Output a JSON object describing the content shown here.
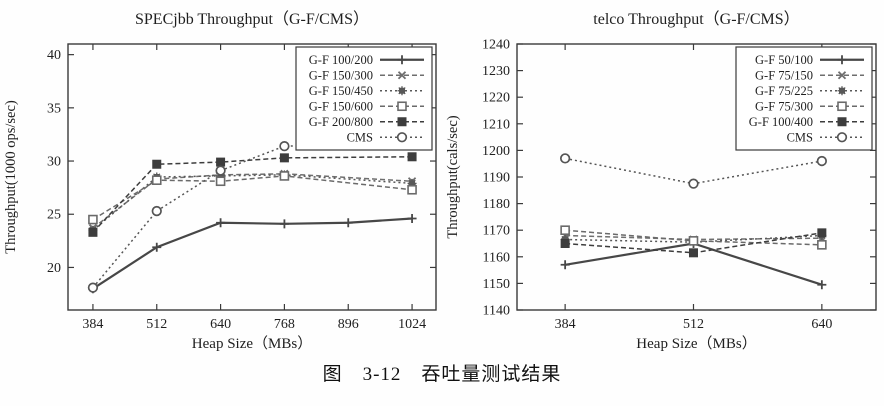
{
  "figure": {
    "caption": "图　3-12　吞吐量测试结果"
  },
  "colors": {
    "ink": "#3a3a3a",
    "background": "#fefefe"
  },
  "chart_data": [
    {
      "type": "line",
      "title": "SPECjbb Throughput（G-F/CMS）",
      "xlabel": "Heap Size（MBs）",
      "ylabel": "Throughput(1000 ops/sec)",
      "xlim": [
        334,
        1072
      ],
      "ylim": [
        16,
        41
      ],
      "xticks": [
        384,
        512,
        640,
        768,
        896,
        1024
      ],
      "yticks": [
        20,
        25,
        30,
        35,
        40
      ],
      "grid": false,
      "legend_position": "top-right",
      "series": [
        {
          "name": "G-F 100/200",
          "marker": "plus",
          "line": "solid",
          "color": "#474747",
          "x": [
            384,
            512,
            640,
            768,
            896,
            1024
          ],
          "y": [
            18.0,
            21.9,
            24.2,
            24.1,
            24.2,
            24.6
          ]
        },
        {
          "name": "G-F 150/300",
          "marker": "x",
          "line": "dashed",
          "color": "#6e6e6e",
          "x": [
            384,
            512,
            640,
            768,
            1024
          ],
          "y": [
            23.7,
            28.3,
            28.7,
            28.8,
            28.1
          ]
        },
        {
          "name": "G-F 150/450",
          "marker": "star-filled",
          "line": "dotted",
          "color": "#585858",
          "x": [
            384,
            512,
            640,
            768,
            1024
          ],
          "y": [
            23.5,
            28.5,
            28.6,
            28.7,
            27.9
          ]
        },
        {
          "name": "G-F 150/600",
          "marker": "square-open",
          "line": "dashed",
          "color": "#6a6a6a",
          "x": [
            384,
            512,
            640,
            768,
            1024
          ],
          "y": [
            24.5,
            28.2,
            28.1,
            28.6,
            27.3
          ]
        },
        {
          "name": "G-F 200/800",
          "marker": "square-filled",
          "line": "dashed",
          "color": "#3d3d3d",
          "x": [
            384,
            512,
            640,
            768,
            1024
          ],
          "y": [
            23.3,
            29.7,
            29.9,
            30.3,
            30.4
          ]
        },
        {
          "name": "CMS",
          "marker": "circle-open",
          "line": "dotted",
          "color": "#555555",
          "x": [
            384,
            512,
            640,
            768,
            1024
          ],
          "y": [
            18.1,
            25.3,
            29.1,
            31.4,
            31.6
          ]
        }
      ]
    },
    {
      "type": "line",
      "title": "telco Throughput（G-F/CMS）",
      "xlabel": "Heap Size（MBs）",
      "ylabel": "Throughput(cals/sec)",
      "xlim": [
        336,
        694
      ],
      "ylim": [
        1140,
        1240
      ],
      "xticks": [
        384,
        512,
        640
      ],
      "yticks": [
        1140,
        1150,
        1160,
        1170,
        1180,
        1190,
        1200,
        1210,
        1220,
        1230,
        1240
      ],
      "grid": false,
      "legend_position": "top-right",
      "series": [
        {
          "name": "G-F 50/100",
          "marker": "plus",
          "line": "solid",
          "color": "#474747",
          "x": [
            384,
            512,
            640
          ],
          "y": [
            1157.0,
            1165.0,
            1149.5
          ]
        },
        {
          "name": "G-F 75/150",
          "marker": "x",
          "line": "dashed",
          "color": "#6e6e6e",
          "x": [
            384,
            512,
            640
          ],
          "y": [
            1168.0,
            1166.5,
            1167.0
          ]
        },
        {
          "name": "G-F 75/225",
          "marker": "star-filled",
          "line": "dotted",
          "color": "#585858",
          "x": [
            384,
            512,
            640
          ],
          "y": [
            1166.5,
            1165.5,
            1168.0
          ]
        },
        {
          "name": "G-F 75/300",
          "marker": "square-open",
          "line": "dashed",
          "color": "#6a6a6a",
          "x": [
            384,
            512,
            640
          ],
          "y": [
            1170.0,
            1166.0,
            1164.5
          ]
        },
        {
          "name": "G-F 100/400",
          "marker": "square-filled",
          "line": "dashed",
          "color": "#3d3d3d",
          "x": [
            384,
            512,
            640
          ],
          "y": [
            1165.0,
            1161.5,
            1169.0
          ]
        },
        {
          "name": "CMS",
          "marker": "circle-open",
          "line": "dotted",
          "color": "#555555",
          "x": [
            384,
            512,
            640
          ],
          "y": [
            1197.0,
            1187.5,
            1196.0
          ]
        }
      ]
    }
  ]
}
